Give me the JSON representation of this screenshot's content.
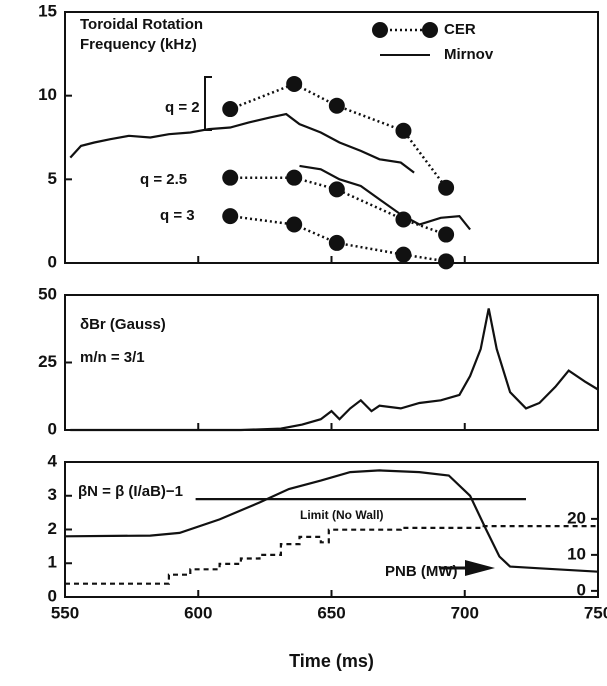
{
  "chart_data": [
    {
      "type": "line",
      "annotations": [
        "Toroidal Rotation",
        "Frequency (kHz)",
        "q = 2",
        "q = 2.5",
        "q = 3"
      ],
      "xlim": [
        550,
        750
      ],
      "ylim": [
        0,
        15
      ],
      "yticks": [
        0,
        5,
        10,
        15
      ],
      "legend": "top-right",
      "series": [
        {
          "name": "CER",
          "color": "#111111",
          "style": "dotted-markers",
          "group": [
            0,
            0,
            0,
            0,
            0,
            1,
            1,
            1,
            1,
            1,
            2,
            2,
            2,
            2,
            2
          ],
          "x": [
            612,
            636,
            652,
            677,
            693,
            612,
            636,
            652,
            677,
            693,
            612,
            636,
            652,
            677,
            693
          ],
          "values": [
            9.2,
            10.7,
            9.4,
            7.9,
            4.5,
            5.1,
            5.1,
            4.4,
            2.6,
            1.7,
            2.8,
            2.3,
            1.2,
            0.5,
            0.1
          ]
        },
        {
          "name": "Mirnov",
          "color": "#111111",
          "style": "solid",
          "x": [
            552,
            556,
            561,
            567,
            574,
            582,
            589,
            597,
            604,
            612,
            619,
            627,
            633,
            638,
            646,
            653,
            661,
            668,
            676,
            681,
            682,
            638,
            646,
            653,
            661,
            668,
            676,
            683,
            691,
            698,
            702
          ],
          "values": [
            6.3,
            7.0,
            7.2,
            7.4,
            7.6,
            7.5,
            7.7,
            7.8,
            8.0,
            8.1,
            8.4,
            8.7,
            8.9,
            8.3,
            7.8,
            7.2,
            6.7,
            6.2,
            6.0,
            5.4,
            null,
            5.8,
            5.6,
            5.0,
            4.6,
            3.8,
            2.9,
            2.3,
            2.7,
            2.8,
            2.0
          ]
        }
      ]
    },
    {
      "type": "line",
      "annotations": [
        "δBr (Gauss)",
        "m/n = 3/1"
      ],
      "xlim": [
        550,
        750
      ],
      "ylim": [
        0,
        50
      ],
      "yticks": [
        0,
        25,
        50
      ],
      "series": [
        {
          "color": "#111111",
          "style": "solid",
          "x": [
            552,
            616,
            631,
            639,
            646,
            650,
            653,
            657,
            661,
            665,
            668,
            676,
            683,
            691,
            698,
            702,
            706,
            709,
            712,
            717,
            723,
            728,
            734,
            739,
            745,
            750
          ],
          "values": [
            0,
            0,
            0.5,
            2,
            4,
            7,
            4,
            8,
            11,
            7,
            9,
            8,
            10,
            11,
            13,
            20,
            30,
            45,
            30,
            14,
            8,
            10,
            16,
            22,
            18,
            15
          ]
        }
      ]
    },
    {
      "type": "line",
      "annotations": [
        "βN = β (I/aB)−1"
      ],
      "xlabel": "Time (ms)",
      "xlim": [
        550,
        750
      ],
      "xticks": [
        550,
        600,
        650,
        700,
        750
      ],
      "ylim": [
        0,
        4
      ],
      "yticks": [
        0,
        1,
        2,
        3,
        4
      ],
      "y2lim": [
        -1.7,
        35.8
      ],
      "y2ticks": [
        0,
        10,
        20
      ],
      "series": [
        {
          "color": "#111111",
          "style": "solid",
          "x": [
            550,
            582,
            593,
            608,
            623,
            634,
            646,
            657,
            668,
            683,
            694,
            702,
            708,
            713,
            717,
            728,
            750
          ],
          "values": [
            1.8,
            1.82,
            1.9,
            2.3,
            2.8,
            3.2,
            3.45,
            3.7,
            3.75,
            3.7,
            3.6,
            3.0,
            2.0,
            1.2,
            0.9,
            0.85,
            0.75
          ]
        },
        {
          "name": "Limit (No Wall)",
          "color": "#111111",
          "style": "solid",
          "x": [
            599,
            723
          ],
          "values": [
            2.9,
            2.9
          ]
        },
        {
          "name": "PNB (MW)",
          "color": "#111111",
          "style": "dashed",
          "axis": "y2",
          "x": [
            550,
            589,
            589,
            597,
            597,
            608,
            608,
            616,
            616,
            623,
            623,
            631,
            631,
            638,
            638,
            646,
            646,
            649,
            649,
            676,
            676,
            706,
            706,
            750
          ],
          "values": [
            2,
            2,
            4.5,
            4.5,
            6,
            6,
            7.5,
            7.5,
            9,
            9,
            10,
            10,
            13,
            13,
            15,
            15,
            13.5,
            13.5,
            17,
            17,
            17.5,
            17.5,
            18,
            18
          ]
        }
      ]
    }
  ]
}
